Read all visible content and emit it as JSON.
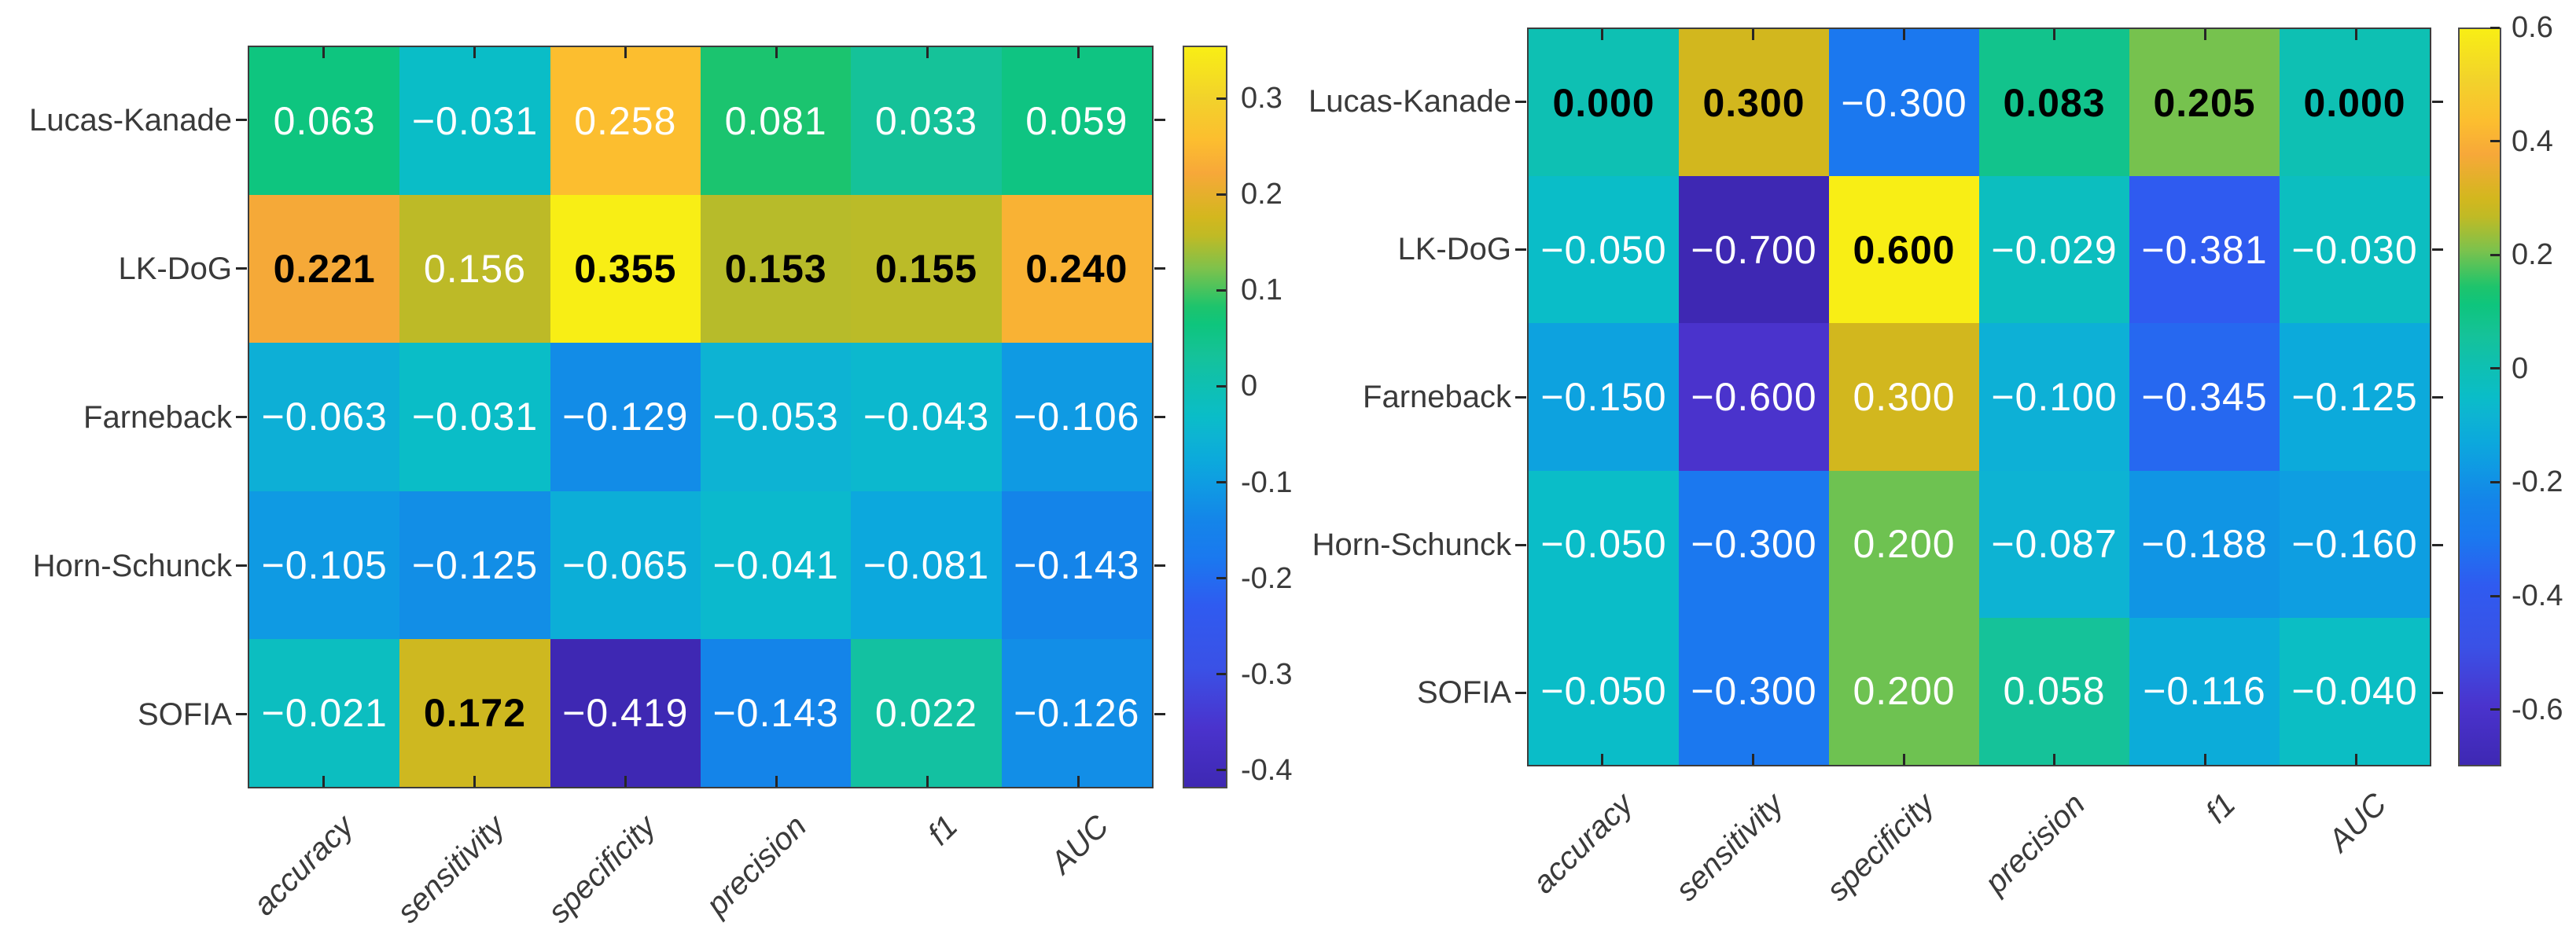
{
  "figure": {
    "background": "#ffffff",
    "text_color": "#3a3a3a",
    "border_color": "#3c3c3c",
    "cell_text_color": "#ffffff",
    "cell_text_bold_color": "#000000",
    "colormap_name": "parula",
    "colormap": [
      {
        "t": 0.0,
        "color": "#3e28b3"
      },
      {
        "t": 0.08,
        "color": "#4a33cd"
      },
      {
        "t": 0.16,
        "color": "#3a51e6"
      },
      {
        "t": 0.245,
        "color": "#2f5bf0"
      },
      {
        "t": 0.31,
        "color": "#1a79ef"
      },
      {
        "t": 0.36,
        "color": "#1485e9"
      },
      {
        "t": 0.405,
        "color": "#0f9ae3"
      },
      {
        "t": 0.44,
        "color": "#0ca9dc"
      },
      {
        "t": 0.475,
        "color": "#0db4d2"
      },
      {
        "t": 0.5,
        "color": "#0abdc8"
      },
      {
        "t": 0.545,
        "color": "#0fc0b0"
      },
      {
        "t": 0.585,
        "color": "#15c298"
      },
      {
        "t": 0.625,
        "color": "#0ec57d"
      },
      {
        "t": 0.65,
        "color": "#1ec46c"
      },
      {
        "t": 0.7,
        "color": "#7dc24c"
      },
      {
        "t": 0.745,
        "color": "#c0ba25"
      },
      {
        "t": 0.77,
        "color": "#d3b71e"
      },
      {
        "t": 0.83,
        "color": "#f7a839"
      },
      {
        "t": 0.875,
        "color": "#fcbe2f"
      },
      {
        "t": 0.93,
        "color": "#f2d22b"
      },
      {
        "t": 1.0,
        "color": "#f8ee15"
      }
    ]
  },
  "chart_data": [
    {
      "type": "heatmap",
      "title": "",
      "rows": [
        "Lucas-Kanade",
        "LK-DoG",
        "Farneback",
        "Horn-Schunck",
        "SOFIA"
      ],
      "columns": [
        "accuracy",
        "sensitivity",
        "specificity",
        "precision",
        "f1",
        "AUC"
      ],
      "values": [
        [
          0.063,
          -0.031,
          0.258,
          0.081,
          0.033,
          0.059
        ],
        [
          0.221,
          0.156,
          0.355,
          0.153,
          0.155,
          0.24
        ],
        [
          -0.063,
          -0.031,
          -0.129,
          -0.053,
          -0.043,
          -0.106
        ],
        [
          -0.105,
          -0.125,
          -0.065,
          -0.041,
          -0.081,
          -0.143
        ],
        [
          -0.021,
          0.172,
          -0.419,
          -0.143,
          0.022,
          -0.126
        ]
      ],
      "clim": [
        -0.419,
        0.355
      ],
      "colorbar_tick_labels": [
        "0.3",
        "0.2",
        "0.1",
        "0",
        "-0.1",
        "-0.2",
        "-0.3",
        "-0.4"
      ],
      "value_format_decimals": 3,
      "bold_rule": "column-max",
      "legend_position": "right",
      "grid": "off"
    },
    {
      "type": "heatmap",
      "title": "",
      "rows": [
        "Lucas-Kanade",
        "LK-DoG",
        "Farneback",
        "Horn-Schunck",
        "SOFIA"
      ],
      "columns": [
        "accuracy",
        "sensitivity",
        "specificity",
        "precision",
        "f1",
        "AUC"
      ],
      "values": [
        [
          0.0,
          0.3,
          -0.3,
          0.083,
          0.205,
          0.0
        ],
        [
          -0.05,
          -0.7,
          0.6,
          -0.029,
          -0.381,
          -0.03
        ],
        [
          -0.15,
          -0.6,
          0.3,
          -0.1,
          -0.345,
          -0.125
        ],
        [
          -0.05,
          -0.3,
          0.2,
          -0.087,
          -0.188,
          -0.16
        ],
        [
          -0.05,
          -0.3,
          0.2,
          0.058,
          -0.116,
          -0.04
        ]
      ],
      "clim": [
        -0.7,
        0.6
      ],
      "colorbar_tick_labels": [
        "0.6",
        "0.4",
        "0.2",
        "0",
        "-0.2",
        "-0.4",
        "-0.6"
      ],
      "value_format_decimals": 3,
      "bold_rule": "column-max",
      "legend_position": "right",
      "grid": "off"
    }
  ]
}
